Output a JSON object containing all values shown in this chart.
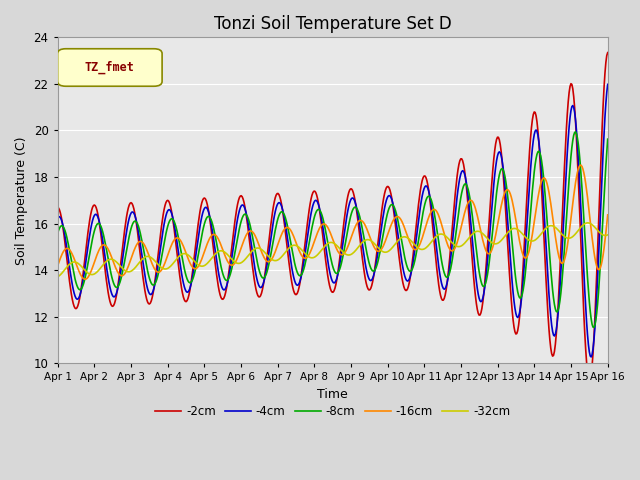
{
  "title": "Tonzi Soil Temperature Set D",
  "xlabel": "Time",
  "ylabel": "Soil Temperature (C)",
  "ylim": [
    10,
    24
  ],
  "yticks": [
    10,
    12,
    14,
    16,
    18,
    20,
    22,
    24
  ],
  "xlim": [
    0,
    15
  ],
  "xtick_labels": [
    "Apr 1",
    "Apr 2",
    "Apr 3",
    "Apr 4",
    "Apr 5",
    "Apr 6",
    "Apr 7",
    "Apr 8",
    "Apr 9",
    "Apr 10",
    "Apr 11",
    "Apr 12",
    "Apr 13",
    "Apr 14",
    "Apr 15",
    "Apr 16"
  ],
  "legend_label": "TZ_fmet",
  "series_labels": [
    "-2cm",
    "-4cm",
    "-8cm",
    "-16cm",
    "-32cm"
  ],
  "series_colors": [
    "#cc0000",
    "#0000cc",
    "#00aa00",
    "#ff8800",
    "#cccc00"
  ],
  "bg_color": "#d8d8d8",
  "plot_bg": "#e8e8e8",
  "title_fontsize": 12,
  "axis_fontsize": 9,
  "n_points": 600
}
